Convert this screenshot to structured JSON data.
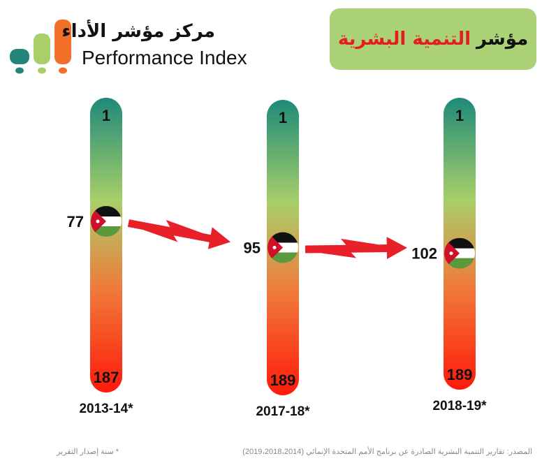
{
  "logo": {
    "arabic": "مركز مؤشر الأداء",
    "english": "Performance Index",
    "colors": [
      "#24857a",
      "#a8cf6a",
      "#f26f2a"
    ]
  },
  "title": {
    "part1": "مؤشر",
    "part2": "التنمية البشرية"
  },
  "chart_data": {
    "type": "rank-bars",
    "title": "مؤشر التنمية البشرية",
    "series": [
      {
        "year": "2013-14",
        "marker": "*",
        "rank": 77,
        "top": 1,
        "bottom": 187
      },
      {
        "year": "2017-18",
        "marker": "*",
        "rank": 95,
        "top": 1,
        "bottom": 189
      },
      {
        "year": "2018-19",
        "marker": "*",
        "rank": 102,
        "top": 1,
        "bottom": 189
      }
    ],
    "gradient": [
      "#1e8a78",
      "#a8cf6a",
      "#f07a3a",
      "#ff1a0a"
    ],
    "arrow_color": "#e8202a"
  },
  "footer": {
    "source": "المصدر: تقارير التنمية البشرية الصادرة عن برنامج الأمم المتحدة الإنمائي (2019،2018،2014)",
    "note": "* سنة إصدار التقرير"
  }
}
